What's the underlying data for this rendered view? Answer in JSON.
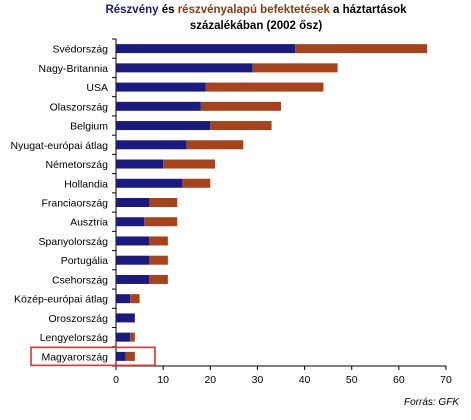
{
  "title": {
    "part1": "Részvény",
    "part2": " és ",
    "part3": "részvényalapú befektetések",
    "part4": " a háztartások",
    "line2": "százalékában (2002 ősz)"
  },
  "source": "Forrás: GFK",
  "chart_data": {
    "type": "bar",
    "orientation": "horizontal",
    "stacked": true,
    "categories": [
      "Svédország",
      "Nagy-Britannia",
      "USA",
      "Olaszország",
      "Belgium",
      "Nyugat-európai átlag",
      "Németország",
      "Hollandia",
      "Franciaország",
      "Ausztria",
      "Spanyolország",
      "Portugália",
      "Csehország",
      "Közép-európai átlag",
      "Oroszország",
      "Lengyelország",
      "Magyarország"
    ],
    "series": [
      {
        "name": "Részvény",
        "color": "#1a1a80",
        "values": [
          38,
          29,
          19,
          18,
          20,
          15,
          10,
          14,
          7,
          6,
          7,
          7,
          7,
          3,
          4,
          3,
          2
        ]
      },
      {
        "name": "részvényalapú befektetések",
        "color": "#a8421a",
        "values": [
          28,
          18,
          25,
          17,
          13,
          12,
          11,
          6,
          6,
          7,
          4,
          4,
          4,
          2,
          0,
          1,
          2
        ]
      }
    ],
    "xlim": [
      0,
      70
    ],
    "xticks": [
      0,
      10,
      20,
      30,
      40,
      50,
      60,
      70
    ],
    "highlight_category": "Magyarország",
    "highlight_color": "#e03030"
  }
}
